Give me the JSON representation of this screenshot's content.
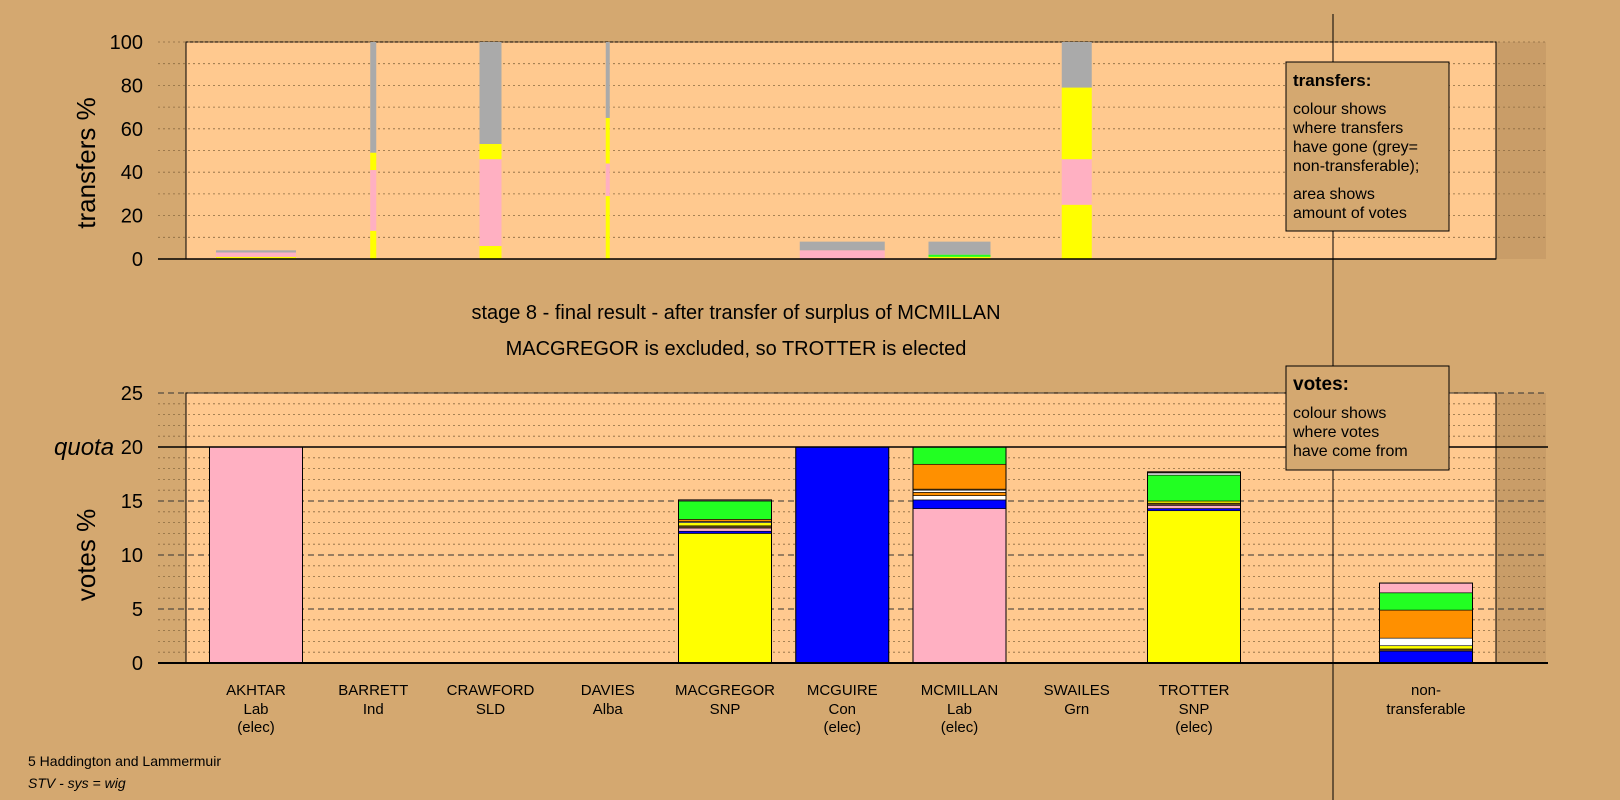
{
  "colors": {
    "background": "#d4a870",
    "plot_bg": "#ffc98f",
    "Lab": "#ffb0c2",
    "Ind": "#ffffff",
    "SLD": "#ff9000",
    "Alba": "#6a4a20",
    "SNP": "#ffff00",
    "Con": "#0000ff",
    "Grn": "#22ff22",
    "nontransferable": "#aaaaaa"
  },
  "transfers_panel": {
    "ylabel": "transfers %",
    "ticks": [
      0,
      20,
      40,
      60,
      80,
      100
    ],
    "legend_title": "transfers:",
    "legend_lines": [
      "colour shows",
      "where transfers",
      "have gone (grey=",
      "non-transferable);"
    ],
    "legend_lines2": [
      "area shows",
      "amount of votes"
    ]
  },
  "heading": {
    "line1": "stage 8 - final result - after transfer of surplus of MCMILLAN",
    "line2": "MACGREGOR is excluded, so TROTTER is elected"
  },
  "votes_panel": {
    "ylabel": "votes %",
    "quota_label": "quota",
    "ticks": [
      0,
      5,
      10,
      15,
      20,
      25
    ],
    "legend_title": "votes:",
    "legend_lines": [
      "colour shows",
      "where votes",
      "have come from"
    ]
  },
  "candidates": [
    {
      "name": "AKHTAR",
      "party": "Lab",
      "status": "(elec)"
    },
    {
      "name": "BARRETT",
      "party": "Ind",
      "status": ""
    },
    {
      "name": "CRAWFORD",
      "party": "SLD",
      "status": ""
    },
    {
      "name": "DAVIES",
      "party": "Alba",
      "status": ""
    },
    {
      "name": "MACGREGOR",
      "party": "SNP",
      "status": ""
    },
    {
      "name": "MCGUIRE",
      "party": "Con",
      "status": "(elec)"
    },
    {
      "name": "MCMILLAN",
      "party": "Lab",
      "status": "(elec)"
    },
    {
      "name": "SWAILES",
      "party": "Grn",
      "status": ""
    },
    {
      "name": "TROTTER",
      "party": "SNP",
      "status": "(elec)"
    }
  ],
  "nontransferable_label": [
    "non-",
    "transferable"
  ],
  "footer": {
    "constituency": "5 Haddington and Lammermuir",
    "system": "STV - sys = wig"
  },
  "chart_data": [
    {
      "type": "bar",
      "stacked": true,
      "ylabel": "transfers %",
      "ylim": [
        0,
        100
      ],
      "grid": true,
      "legend": "top-right",
      "categories": [
        "AKHTAR",
        "BARRETT",
        "CRAWFORD",
        "DAVIES",
        "MACGREGOR",
        "MCGUIRE",
        "MCMILLAN",
        "SWAILES",
        "TROTTER"
      ],
      "bars": [
        {
          "candidate": "AKHTAR",
          "width_rel": 0.8,
          "segments": [
            {
              "to": "SNP",
              "value": 1
            },
            {
              "to": "Lab",
              "value": 2
            },
            {
              "to": "nontransferable",
              "value": 1
            }
          ]
        },
        {
          "candidate": "BARRETT",
          "width_rel": 0.06,
          "segments": [
            {
              "to": "SNP",
              "value": 13
            },
            {
              "to": "Lab",
              "value": 28
            },
            {
              "to": "SNP",
              "value": 8
            },
            {
              "to": "nontransferable",
              "value": 51
            }
          ]
        },
        {
          "candidate": "CRAWFORD",
          "width_rel": 0.22,
          "segments": [
            {
              "to": "SNP",
              "value": 6
            },
            {
              "to": "Lab",
              "value": 40
            },
            {
              "to": "SNP",
              "value": 7
            },
            {
              "to": "nontransferable",
              "value": 47
            }
          ]
        },
        {
          "candidate": "DAVIES",
          "width_rel": 0.04,
          "segments": [
            {
              "to": "SNP",
              "value": 29
            },
            {
              "to": "Lab",
              "value": 15
            },
            {
              "to": "SNP",
              "value": 21
            },
            {
              "to": "nontransferable",
              "value": 35
            }
          ]
        },
        {
          "candidate": "MCGUIRE",
          "width_rel": 0.85,
          "segments": [
            {
              "to": "Lab",
              "value": 4
            },
            {
              "to": "nontransferable",
              "value": 4
            }
          ]
        },
        {
          "candidate": "MCMILLAN",
          "width_rel": 0.62,
          "segments": [
            {
              "to": "SNP",
              "value": 1
            },
            {
              "to": "Grn",
              "value": 1
            },
            {
              "to": "nontransferable",
              "value": 6
            }
          ]
        },
        {
          "candidate": "SWAILES",
          "width_rel": 0.3,
          "segments": [
            {
              "to": "SNP",
              "value": 25
            },
            {
              "to": "Lab",
              "value": 21
            },
            {
              "to": "SNP",
              "value": 33
            },
            {
              "to": "nontransferable",
              "value": 21
            }
          ]
        }
      ]
    },
    {
      "type": "bar",
      "stacked": true,
      "ylabel": "votes %",
      "ylim": [
        0,
        25
      ],
      "quota": 20,
      "grid": true,
      "legend": "top-right",
      "categories": [
        "AKHTAR",
        "BARRETT",
        "CRAWFORD",
        "DAVIES",
        "MACGREGOR",
        "MCGUIRE",
        "MCMILLAN",
        "SWAILES",
        "TROTTER",
        "non-transferable"
      ],
      "bars": [
        {
          "candidate": "AKHTAR",
          "segments": [
            {
              "from": "Lab",
              "value": 20.0
            }
          ]
        },
        {
          "candidate": "MACGREGOR",
          "segments": [
            {
              "from": "SNP",
              "value": 12.0
            },
            {
              "from": "Con",
              "value": 0.2
            },
            {
              "from": "Lab",
              "value": 0.3
            },
            {
              "from": "Alba",
              "value": 0.2
            },
            {
              "from": "SNP",
              "value": 0.3
            },
            {
              "from": "Ind",
              "value": 0.1
            },
            {
              "from": "SLD",
              "value": 0.2
            },
            {
              "from": "Grn",
              "value": 1.7
            },
            {
              "from": "Lab",
              "value": 0.1
            }
          ]
        },
        {
          "candidate": "MCGUIRE",
          "segments": [
            {
              "from": "Con",
              "value": 20.0
            }
          ]
        },
        {
          "candidate": "MCMILLAN",
          "segments": [
            {
              "from": "Lab",
              "value": 14.3
            },
            {
              "from": "Con",
              "value": 0.8
            },
            {
              "from": "Ind",
              "value": 0.4
            },
            {
              "from": "SLD",
              "value": 0.3
            },
            {
              "from": "Ind",
              "value": 0.2
            },
            {
              "from": "Alba",
              "value": 0.1
            },
            {
              "from": "SLD",
              "value": 2.3
            },
            {
              "from": "Grn",
              "value": 1.6
            }
          ]
        },
        {
          "candidate": "TROTTER",
          "segments": [
            {
              "from": "SNP",
              "value": 14.1
            },
            {
              "from": "Con",
              "value": 0.2
            },
            {
              "from": "Lab",
              "value": 0.3
            },
            {
              "from": "Alba",
              "value": 0.2
            },
            {
              "from": "SNP",
              "value": 0.2
            },
            {
              "from": "Grn",
              "value": 2.4
            },
            {
              "from": "Ind",
              "value": 0.2
            },
            {
              "from": "Alba",
              "value": 0.1
            }
          ]
        },
        {
          "candidate": "non-transferable",
          "segments": [
            {
              "from": "Con",
              "value": 1.1
            },
            {
              "from": "Alba",
              "value": 0.2
            },
            {
              "from": "SNP",
              "value": 0.3
            },
            {
              "from": "Ind",
              "value": 0.7
            },
            {
              "from": "SLD",
              "value": 2.6
            },
            {
              "from": "Grn",
              "value": 1.6
            },
            {
              "from": "Lab",
              "value": 0.9
            }
          ]
        }
      ]
    }
  ]
}
